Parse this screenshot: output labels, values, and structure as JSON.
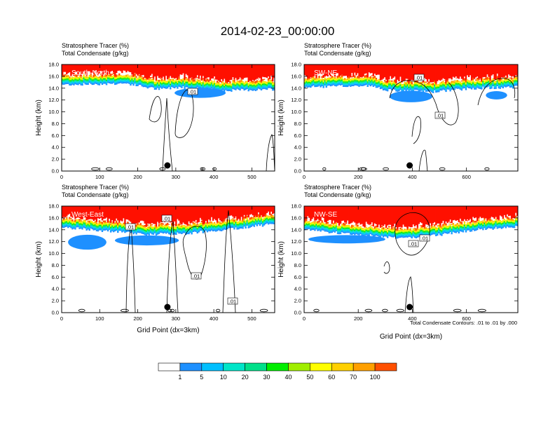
{
  "chart_data": {
    "type": "heatmap",
    "title": "2014-02-23_00:00:00",
    "field_labels": [
      "Stratosphere Tracer   (%)",
      "Total Condensate   (g/kg)"
    ],
    "ylabel": "Height (km)",
    "xlabel": "Grid Point (dx=3km)",
    "ylim": [
      0,
      18
    ],
    "yticks": [
      "0.0",
      "2.0",
      "4.0",
      "6.0",
      "8.0",
      "10.0",
      "12.0",
      "14.0",
      "16.0",
      "18.0"
    ],
    "colorbar": {
      "levels": [
        "1",
        "5",
        "10",
        "20",
        "30",
        "40",
        "50",
        "60",
        "70",
        "100"
      ],
      "colors": [
        "#ffffff",
        "#1e90ff",
        "#00bfff",
        "#00e5c8",
        "#00e08a",
        "#00ee00",
        "#a0ee00",
        "#ffff00",
        "#ffd000",
        "#ffa000",
        "#ff5000",
        "#ff1000"
      ]
    },
    "contour_info": "Total Condensate Contours: .01 to .01 by .000",
    "contour_labels": [
      ".01",
      ".01",
      ".01",
      ".01",
      ".01",
      ".01",
      ".01",
      ".01"
    ],
    "panels": [
      {
        "name": "South-North",
        "xlim": [
          0,
          560
        ],
        "xticks": [
          "0",
          "100",
          "200",
          "300",
          "400",
          "500"
        ],
        "station_x": 278
      },
      {
        "name": "SW-NE",
        "xlim": [
          0,
          790
        ],
        "xticks": [
          "0",
          "200",
          "400",
          "600"
        ],
        "station_x": 390
      },
      {
        "name": "West-East",
        "xlim": [
          0,
          560
        ],
        "xticks": [
          "0",
          "100",
          "200",
          "300",
          "400",
          "500"
        ],
        "station_x": 278
      },
      {
        "name": "NW-SE",
        "xlim": [
          0,
          790
        ],
        "xticks": [
          "0",
          "200",
          "400",
          "600"
        ],
        "station_x": 390
      }
    ]
  }
}
